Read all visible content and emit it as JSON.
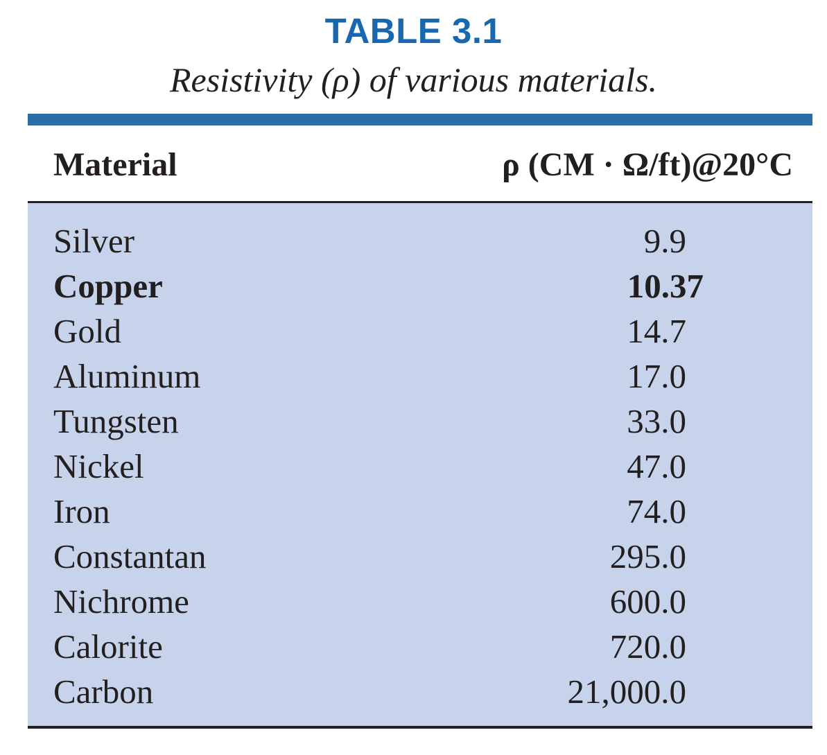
{
  "table": {
    "number": "TABLE 3.1",
    "caption": "Resistivity (ρ) of various materials.",
    "headers": {
      "material": "Material",
      "resistivity": "ρ (CM · Ω/ft)@20°C"
    },
    "rows": [
      {
        "material": "Silver",
        "value": "9.9",
        "bold": false
      },
      {
        "material": "Copper",
        "value": "10.37",
        "bold": true
      },
      {
        "material": "Gold",
        "value": "14.7",
        "bold": false
      },
      {
        "material": "Aluminum",
        "value": "17.0",
        "bold": false
      },
      {
        "material": "Tungsten",
        "value": "33.0",
        "bold": false
      },
      {
        "material": "Nickel",
        "value": "47.0",
        "bold": false
      },
      {
        "material": "Iron",
        "value": "74.0",
        "bold": false
      },
      {
        "material": "Constantan",
        "value": "295.0",
        "bold": false
      },
      {
        "material": "Nichrome",
        "value": "600.0",
        "bold": false
      },
      {
        "material": "Calorite",
        "value": "720.0",
        "bold": false
      },
      {
        "material": "Carbon",
        "value": "21,000.0",
        "bold": false
      }
    ]
  },
  "colors": {
    "title_blue": "#1768b1",
    "top_rule_blue": "#2b6ea6",
    "body_fill": "#c6d3ea",
    "text": "#231f20"
  }
}
